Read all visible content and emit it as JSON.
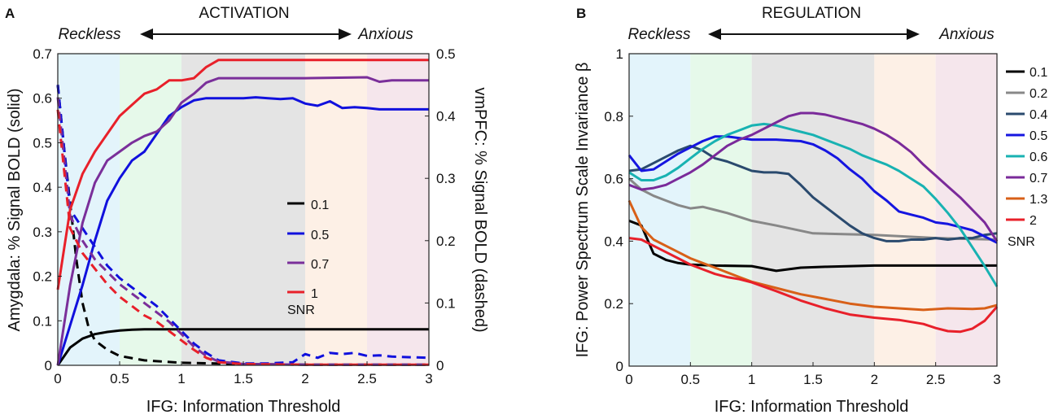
{
  "chart_data": [
    {
      "type": "line",
      "panel_label": "A",
      "header": "ACTIVATION",
      "left_end": "Reckless",
      "right_end": "Anxious",
      "xlabel": "IFG:  Information Threshold",
      "ylabel": "Amygdala:  % Signal BOLD (solid)",
      "y2label": "vmPFC:  % Signal BOLD (dashed)",
      "xlim": [
        0,
        3
      ],
      "ylim": [
        0,
        0.7
      ],
      "y2lim": [
        0,
        0.5
      ],
      "xticks": [
        "0",
        "0.5",
        "1",
        "1.5",
        "2",
        "2.5",
        "3"
      ],
      "yticks": [
        "0",
        "0.1",
        "0.2",
        "0.3",
        "0.4",
        "0.5",
        "0.6",
        "0.7"
      ],
      "y2ticks": [
        "0",
        "0.1",
        "0.2",
        "0.3",
        "0.4",
        "0.5"
      ],
      "bands": [
        {
          "from": 0,
          "to": 0.5,
          "color": "#e3f4fb"
        },
        {
          "from": 0.5,
          "to": 1,
          "color": "#e6f9ea"
        },
        {
          "from": 1,
          "to": 2,
          "color": "#e4e4e4"
        },
        {
          "from": 2,
          "to": 2.5,
          "color": "#fdf0e6"
        },
        {
          "from": 2.5,
          "to": 3,
          "color": "#f5e6ec"
        }
      ],
      "legend_title": "SNR",
      "series": [
        {
          "name": "0.1",
          "color": "#000000",
          "x": [
            0,
            0.1,
            0.2,
            0.3,
            0.4,
            0.5,
            0.6,
            0.7,
            0.8,
            1,
            1.5,
            2,
            2.5,
            3
          ],
          "solid": [
            0,
            0.04,
            0.06,
            0.07,
            0.075,
            0.078,
            0.08,
            0.081,
            0.081,
            0.081,
            0.081,
            0.081,
            0.081,
            0.081
          ],
          "dashed_x": [
            0,
            0.05,
            0.1,
            0.15,
            0.2,
            0.25,
            0.3,
            0.4,
            0.5,
            0.7,
            1,
            1.5,
            2,
            3
          ],
          "dashed": [
            0.45,
            0.35,
            0.26,
            0.17,
            0.1,
            0.06,
            0.04,
            0.025,
            0.015,
            0.008,
            0.004,
            0.002,
            0.001,
            0.001
          ]
        },
        {
          "name": "0.5",
          "color": "#1010dd",
          "x": [
            0,
            0.1,
            0.2,
            0.3,
            0.4,
            0.5,
            0.6,
            0.7,
            0.8,
            0.9,
            1,
            1.1,
            1.2,
            1.3,
            1.5,
            1.6,
            1.7,
            1.8,
            1.9,
            2,
            2.1,
            2.2,
            2.3,
            2.4,
            2.5,
            2.6,
            2.7,
            3
          ],
          "solid": [
            0,
            0.09,
            0.18,
            0.28,
            0.37,
            0.42,
            0.46,
            0.48,
            0.52,
            0.56,
            0.58,
            0.595,
            0.6,
            0.6,
            0.6,
            0.602,
            0.6,
            0.598,
            0.6,
            0.588,
            0.583,
            0.593,
            0.578,
            0.58,
            0.578,
            0.575,
            0.575,
            0.575
          ],
          "dashed_x": [
            0,
            0.1,
            0.2,
            0.3,
            0.4,
            0.5,
            0.6,
            0.7,
            0.8,
            0.9,
            1,
            1.1,
            1.2,
            1.3,
            1.5,
            1.7,
            1.9,
            2,
            2.1,
            2.2,
            2.3,
            2.4,
            2.5,
            2.6,
            2.7,
            3
          ],
          "dashed": [
            0.45,
            0.25,
            0.22,
            0.19,
            0.16,
            0.14,
            0.125,
            0.11,
            0.095,
            0.075,
            0.055,
            0.035,
            0.02,
            0.008,
            0.003,
            0.003,
            0.005,
            0.018,
            0.012,
            0.02,
            0.018,
            0.02,
            0.015,
            0.016,
            0.014,
            0.012
          ]
        },
        {
          "name": "0.7",
          "color": "#7a2f9a",
          "x": [
            0,
            0.1,
            0.2,
            0.3,
            0.4,
            0.5,
            0.6,
            0.7,
            0.8,
            0.9,
            1,
            1.1,
            1.2,
            1.3,
            1.5,
            2,
            2.5,
            2.6,
            2.7,
            2.8,
            3
          ],
          "solid": [
            0,
            0.18,
            0.32,
            0.41,
            0.46,
            0.48,
            0.5,
            0.515,
            0.525,
            0.55,
            0.59,
            0.61,
            0.635,
            0.645,
            0.645,
            0.645,
            0.647,
            0.637,
            0.64,
            0.64,
            0.64
          ],
          "dashed_x": [
            0,
            0.1,
            0.2,
            0.3,
            0.4,
            0.5,
            0.6,
            0.7,
            0.8,
            0.9,
            1,
            1.1,
            1.2,
            1.3,
            1.5,
            2,
            3
          ],
          "dashed": [
            0.43,
            0.24,
            0.2,
            0.17,
            0.15,
            0.13,
            0.115,
            0.1,
            0.085,
            0.07,
            0.05,
            0.03,
            0.015,
            0.006,
            0.002,
            0.001,
            0.001
          ]
        },
        {
          "name": "1",
          "color": "#e8202a",
          "x": [
            0,
            0.1,
            0.2,
            0.3,
            0.4,
            0.5,
            0.6,
            0.7,
            0.8,
            0.9,
            1,
            1.1,
            1.2,
            1.3,
            1.5,
            2,
            2.5,
            3
          ],
          "solid": [
            0.17,
            0.35,
            0.43,
            0.48,
            0.52,
            0.56,
            0.585,
            0.61,
            0.62,
            0.64,
            0.64,
            0.645,
            0.67,
            0.686,
            0.686,
            0.686,
            0.686,
            0.686
          ],
          "dashed_x": [
            0,
            0.1,
            0.2,
            0.3,
            0.4,
            0.5,
            0.6,
            0.7,
            0.8,
            0.9,
            1,
            1.1,
            1.2,
            1.3,
            1.5,
            2,
            3
          ],
          "dashed": [
            0.41,
            0.22,
            0.18,
            0.155,
            0.13,
            0.11,
            0.095,
            0.08,
            0.07,
            0.055,
            0.04,
            0.025,
            0.012,
            0.005,
            0.002,
            0.001,
            0.001
          ]
        }
      ]
    },
    {
      "type": "line",
      "panel_label": "B",
      "header": "REGULATION",
      "left_end": "Reckless",
      "right_end": "Anxious",
      "xlabel": "IFG:  Information Threshold",
      "ylabel": "IFG:  Power Spectrum Scale Invariance β",
      "xlim": [
        0,
        3
      ],
      "ylim": [
        0,
        1
      ],
      "xticks": [
        "0",
        "0.5",
        "1",
        "1.5",
        "2",
        "2.5",
        "3"
      ],
      "yticks": [
        "0",
        "0.2",
        "0.4",
        "0.6",
        "0.8",
        "1"
      ],
      "bands": [
        {
          "from": 0,
          "to": 0.5,
          "color": "#e3f4fb"
        },
        {
          "from": 0.5,
          "to": 1,
          "color": "#e6f9ea"
        },
        {
          "from": 1,
          "to": 2,
          "color": "#e4e4e4"
        },
        {
          "from": 2,
          "to": 2.5,
          "color": "#fdf0e6"
        },
        {
          "from": 2.5,
          "to": 3,
          "color": "#f5e6ec"
        }
      ],
      "legend_title": "SNR",
      "series": [
        {
          "name": "0.1",
          "color": "#000000",
          "x": [
            0,
            0.1,
            0.2,
            0.3,
            0.4,
            0.5,
            0.7,
            1,
            1.2,
            1.4,
            1.6,
            2,
            2.5,
            3
          ],
          "values": [
            0.465,
            0.45,
            0.36,
            0.34,
            0.33,
            0.325,
            0.322,
            0.32,
            0.305,
            0.315,
            0.318,
            0.322,
            0.322,
            0.322
          ]
        },
        {
          "name": "0.2",
          "color": "#888888",
          "x": [
            0,
            0.1,
            0.2,
            0.3,
            0.4,
            0.5,
            0.6,
            0.7,
            0.8,
            1,
            1.2,
            1.5,
            2,
            2.5,
            3
          ],
          "values": [
            0.6,
            0.565,
            0.545,
            0.53,
            0.515,
            0.505,
            0.51,
            0.5,
            0.49,
            0.465,
            0.45,
            0.425,
            0.42,
            0.41,
            0.405
          ]
        },
        {
          "name": "0.4",
          "color": "#2a4a6e",
          "x": [
            0,
            0.1,
            0.2,
            0.3,
            0.4,
            0.5,
            0.6,
            0.7,
            0.8,
            0.9,
            1,
            1.1,
            1.2,
            1.3,
            1.4,
            1.5,
            1.6,
            1.7,
            1.8,
            1.9,
            2,
            2.1,
            2.2,
            2.3,
            2.4,
            2.5,
            2.6,
            2.7,
            2.8,
            2.9,
            3
          ],
          "values": [
            0.625,
            0.63,
            0.65,
            0.67,
            0.69,
            0.705,
            0.69,
            0.665,
            0.655,
            0.64,
            0.625,
            0.62,
            0.62,
            0.615,
            0.58,
            0.54,
            0.51,
            0.48,
            0.45,
            0.425,
            0.41,
            0.4,
            0.4,
            0.405,
            0.405,
            0.41,
            0.405,
            0.41,
            0.41,
            0.42,
            0.425
          ]
        },
        {
          "name": "0.5",
          "color": "#1515e0",
          "x": [
            0,
            0.1,
            0.2,
            0.3,
            0.4,
            0.5,
            0.6,
            0.7,
            0.8,
            0.9,
            1,
            1.2,
            1.4,
            1.5,
            1.6,
            1.7,
            1.8,
            1.9,
            2,
            2.1,
            2.2,
            2.3,
            2.4,
            2.5,
            2.6,
            2.7,
            2.8,
            2.9,
            3
          ],
          "values": [
            0.675,
            0.625,
            0.63,
            0.655,
            0.68,
            0.7,
            0.72,
            0.735,
            0.735,
            0.73,
            0.725,
            0.725,
            0.72,
            0.71,
            0.69,
            0.665,
            0.63,
            0.6,
            0.56,
            0.53,
            0.495,
            0.485,
            0.475,
            0.46,
            0.455,
            0.445,
            0.435,
            0.415,
            0.395
          ]
        },
        {
          "name": "0.6",
          "color": "#18b2b2",
          "x": [
            0,
            0.1,
            0.2,
            0.3,
            0.4,
            0.5,
            0.6,
            0.7,
            0.8,
            0.9,
            1,
            1.1,
            1.2,
            1.3,
            1.4,
            1.5,
            1.6,
            1.7,
            1.8,
            1.9,
            2,
            2.1,
            2.2,
            2.3,
            2.4,
            2.5,
            2.6,
            2.7,
            2.8,
            2.9,
            3
          ],
          "values": [
            0.62,
            0.595,
            0.595,
            0.61,
            0.635,
            0.665,
            0.695,
            0.72,
            0.74,
            0.755,
            0.77,
            0.775,
            0.77,
            0.76,
            0.75,
            0.74,
            0.725,
            0.71,
            0.695,
            0.675,
            0.66,
            0.645,
            0.625,
            0.6,
            0.575,
            0.535,
            0.49,
            0.44,
            0.38,
            0.32,
            0.255
          ]
        },
        {
          "name": "0.7",
          "color": "#7a2a9a",
          "x": [
            0,
            0.1,
            0.2,
            0.3,
            0.4,
            0.5,
            0.6,
            0.7,
            0.8,
            0.9,
            1,
            1.1,
            1.2,
            1.3,
            1.4,
            1.5,
            1.6,
            1.7,
            1.8,
            1.9,
            2,
            2.1,
            2.2,
            2.3,
            2.4,
            2.5,
            2.6,
            2.7,
            2.8,
            2.9,
            3
          ],
          "values": [
            0.58,
            0.565,
            0.57,
            0.58,
            0.6,
            0.62,
            0.645,
            0.675,
            0.705,
            0.725,
            0.74,
            0.76,
            0.78,
            0.8,
            0.81,
            0.81,
            0.805,
            0.795,
            0.785,
            0.775,
            0.76,
            0.74,
            0.715,
            0.685,
            0.645,
            0.61,
            0.575,
            0.54,
            0.5,
            0.46,
            0.4
          ]
        },
        {
          "name": "1.3",
          "color": "#d86018",
          "x": [
            0,
            0.1,
            0.2,
            0.3,
            0.4,
            0.5,
            0.6,
            0.7,
            0.8,
            0.9,
            1,
            1.2,
            1.4,
            1.6,
            1.8,
            2,
            2.2,
            2.4,
            2.6,
            2.8,
            2.9,
            3
          ],
          "values": [
            0.53,
            0.445,
            0.405,
            0.385,
            0.365,
            0.345,
            0.33,
            0.315,
            0.3,
            0.285,
            0.27,
            0.25,
            0.23,
            0.215,
            0.2,
            0.19,
            0.185,
            0.18,
            0.185,
            0.183,
            0.185,
            0.195
          ]
        },
        {
          "name": "2",
          "color": "#e8202a",
          "x": [
            0,
            0.1,
            0.2,
            0.3,
            0.4,
            0.5,
            0.6,
            0.7,
            0.8,
            0.9,
            1,
            1.2,
            1.4,
            1.6,
            1.8,
            2,
            2.2,
            2.4,
            2.5,
            2.6,
            2.7,
            2.8,
            2.9,
            3
          ],
          "values": [
            0.41,
            0.405,
            0.385,
            0.365,
            0.345,
            0.325,
            0.31,
            0.295,
            0.285,
            0.278,
            0.268,
            0.24,
            0.21,
            0.185,
            0.165,
            0.155,
            0.148,
            0.135,
            0.122,
            0.112,
            0.11,
            0.12,
            0.145,
            0.19
          ]
        }
      ]
    }
  ]
}
